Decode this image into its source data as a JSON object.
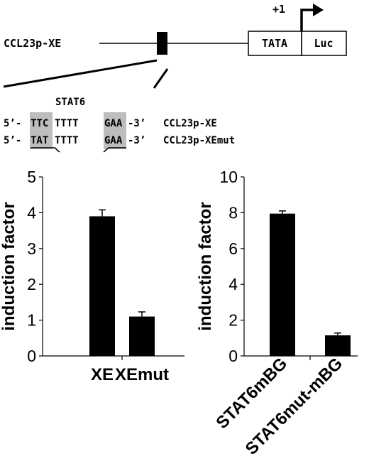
{
  "diagram": {
    "construct_label": "CCL23p-XE",
    "plus_one": "+1",
    "tata": "TATA",
    "luc": "Luc",
    "stat6_label": "STAT6",
    "seq_wt": {
      "prefix": "5’-",
      "box1": "TTC",
      "mid": "TTTT",
      "box2": "GAA",
      "suffix": "-3’",
      "name": "CCL23p-XE"
    },
    "seq_mut": {
      "prefix": "5’-",
      "box1": "TAT",
      "mid": "TTTT",
      "box2": "GAA",
      "suffix": "-3’",
      "name": "CCL23p-XEmut"
    }
  },
  "colors": {
    "bar": "#000000",
    "highlight": "#bdbdbd",
    "line": "#000000"
  },
  "chart_data": [
    {
      "type": "bar",
      "title": "",
      "xlabel": "",
      "ylabel": "induction factor",
      "categories": [
        "XE",
        "XEmut"
      ],
      "values": [
        3.9,
        1.1
      ],
      "errors": [
        0.18,
        0.13
      ],
      "ylim": [
        0,
        5
      ],
      "yticks": [
        0,
        1,
        2,
        3,
        4,
        5
      ],
      "grid": false
    },
    {
      "type": "bar",
      "title": "",
      "xlabel": "",
      "ylabel": "induction factor",
      "categories": [
        "STAT6mBG",
        "STAT6mut-mBG"
      ],
      "values": [
        7.95,
        1.15
      ],
      "errors": [
        0.15,
        0.13
      ],
      "ylim": [
        0,
        10
      ],
      "yticks": [
        0,
        2,
        4,
        6,
        8,
        10
      ],
      "grid": false
    }
  ]
}
